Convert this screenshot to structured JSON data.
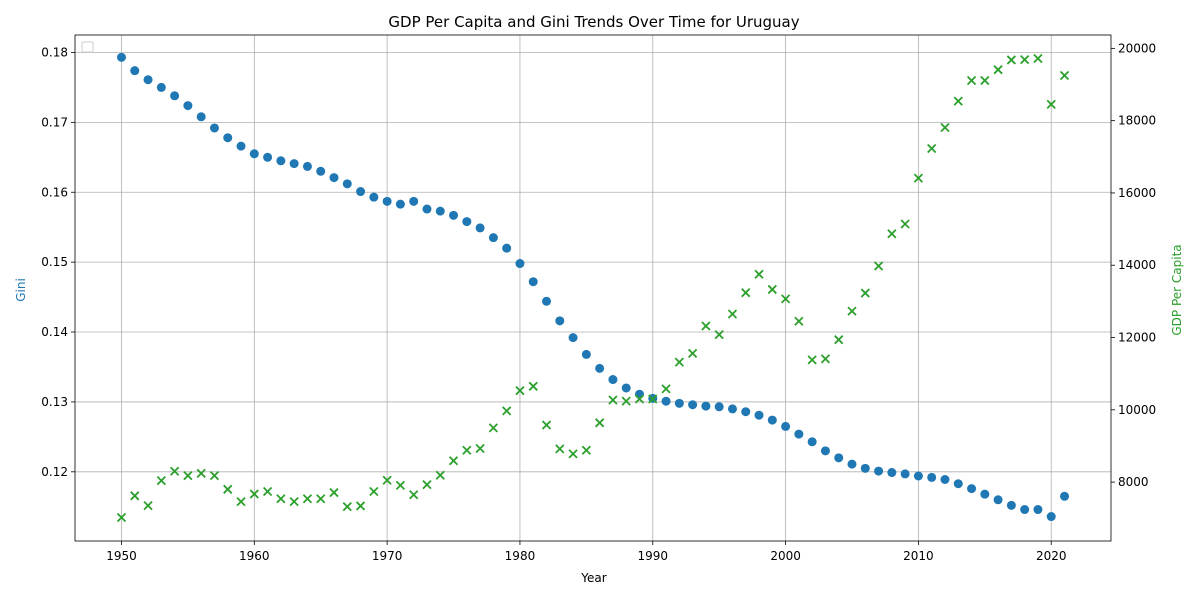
{
  "chart_data": {
    "type": "scatter",
    "title": "GDP Per Capita and Gini Trends Over Time for Uruguay",
    "xlabel": "Year",
    "ylabel_left": "Gini",
    "ylabel_right": "GDP Per Capita",
    "xlim": [
      1946.5,
      2024.5
    ],
    "ylim_left": [
      0.1101,
      0.1825
    ],
    "ylim_right": [
      6370,
      20370
    ],
    "x_ticks": [
      1950,
      1960,
      1970,
      1980,
      1990,
      2000,
      2010,
      2020
    ],
    "y_left_ticks": [
      0.12,
      0.13,
      0.14,
      0.15,
      0.16,
      0.17,
      0.18
    ],
    "y_right_ticks": [
      8000,
      10000,
      12000,
      14000,
      16000,
      18000,
      20000
    ],
    "grid": true,
    "legend": "top-left",
    "colors": {
      "gini": "#1f77b4",
      "gdp": "#2ca02c"
    },
    "years": [
      1950,
      1951,
      1952,
      1953,
      1954,
      1955,
      1956,
      1957,
      1958,
      1959,
      1960,
      1961,
      1962,
      1963,
      1964,
      1965,
      1966,
      1967,
      1968,
      1969,
      1970,
      1971,
      1972,
      1973,
      1974,
      1975,
      1976,
      1977,
      1978,
      1979,
      1980,
      1981,
      1982,
      1983,
      1984,
      1985,
      1986,
      1987,
      1988,
      1989,
      1990,
      1991,
      1992,
      1993,
      1994,
      1995,
      1996,
      1997,
      1998,
      1999,
      2000,
      2001,
      2002,
      2003,
      2004,
      2005,
      2006,
      2007,
      2008,
      2009,
      2010,
      2011,
      2012,
      2013,
      2014,
      2015,
      2016,
      2017,
      2018,
      2019,
      2020,
      2021
    ],
    "series": [
      {
        "axis": "left",
        "marker": "circle",
        "values": [
          0.1793,
          0.1774,
          0.1761,
          0.175,
          0.1738,
          0.1724,
          0.1708,
          0.1692,
          0.1678,
          0.1666,
          0.1655,
          0.165,
          0.1645,
          0.1641,
          0.1637,
          0.163,
          0.1621,
          0.1612,
          0.1601,
          0.1593,
          0.1587,
          0.1583,
          0.1587,
          0.1576,
          0.1573,
          0.1567,
          0.1558,
          0.1549,
          0.1535,
          0.152,
          0.1498,
          0.1472,
          0.1444,
          0.1416,
          0.1392,
          0.1368,
          0.1348,
          0.1332,
          0.132,
          0.1311,
          0.1305,
          0.1301,
          0.1298,
          0.1296,
          0.1294,
          0.1293,
          0.129,
          0.1286,
          0.1281,
          0.1274,
          0.1265,
          0.1254,
          0.1243,
          0.123,
          0.122,
          0.1211,
          0.1205,
          0.1201,
          0.1199,
          0.1197,
          0.1194,
          0.1192,
          0.1189,
          0.1183,
          0.1176,
          0.1168,
          0.116,
          0.1152,
          0.1146,
          0.1146,
          0.1136,
          0.1165
        ]
      },
      {
        "axis": "right",
        "marker": "x",
        "values": [
          7020,
          7620,
          7350,
          8040,
          8300,
          8180,
          8240,
          8180,
          7800,
          7460,
          7670,
          7740,
          7540,
          7460,
          7540,
          7540,
          7710,
          7320,
          7340,
          7740,
          8050,
          7910,
          7650,
          7930,
          8190,
          8590,
          8880,
          8930,
          9500,
          9970,
          10530,
          10650,
          9580,
          8920,
          8780,
          8880,
          9640,
          10270,
          10240,
          10300,
          10300,
          10580,
          11320,
          11560,
          12320,
          12080,
          12650,
          13240,
          13750,
          13330,
          13070,
          12450,
          11380,
          11410,
          11940,
          12730,
          13230,
          13980,
          14870,
          15140,
          16410,
          17230,
          17810,
          18540,
          19110,
          19110,
          19410,
          19680,
          19690,
          19720,
          18450,
          19250
        ]
      }
    ]
  }
}
